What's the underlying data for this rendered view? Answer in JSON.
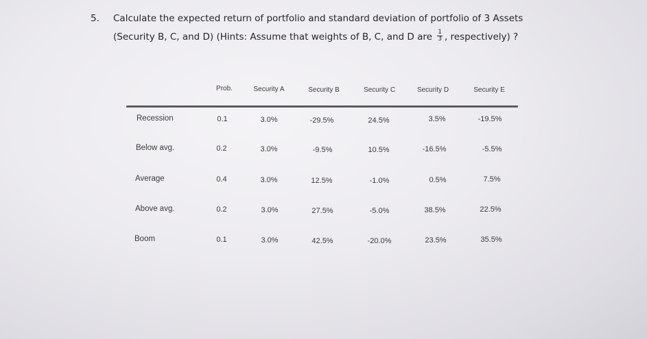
{
  "question": {
    "number": "5.",
    "line1": "Calculate the expected return of portfolio and standard deviation of portfolio of 3 Assets",
    "line2_before": "(Security B, C, and D) (Hints: Assume that weights of B, C, and D are",
    "fraction_num": "1",
    "fraction_den": "3",
    "line2_after": ", respectively) ?"
  },
  "table": {
    "headers": [
      "Prob.",
      "Security A",
      "Security B",
      "Security C",
      "Security D",
      "Security E"
    ],
    "rows": [
      {
        "label": "Recession",
        "values": [
          "0.1",
          "3.0%",
          "-29.5%",
          "24.5%",
          "3.5%",
          "-19.5%"
        ]
      },
      {
        "label": "Below avg.",
        "values": [
          "0.2",
          "3.0%",
          "-9.5%",
          "10.5%",
          "-16.5%",
          "-5.5%"
        ]
      },
      {
        "label": "Average",
        "values": [
          "0.4",
          "3.0%",
          "12.5%",
          "-1.0%",
          "0.5%",
          "7.5%"
        ]
      },
      {
        "label": "Above avg.",
        "values": [
          "0.2",
          "3.0%",
          "27.5%",
          "-5.0%",
          "38.5%",
          "22.5%"
        ]
      },
      {
        "label": "Boom",
        "values": [
          "0.1",
          "3.0%",
          "42.5%",
          "-20.0%",
          "23.5%",
          "35.5%"
        ]
      }
    ]
  }
}
